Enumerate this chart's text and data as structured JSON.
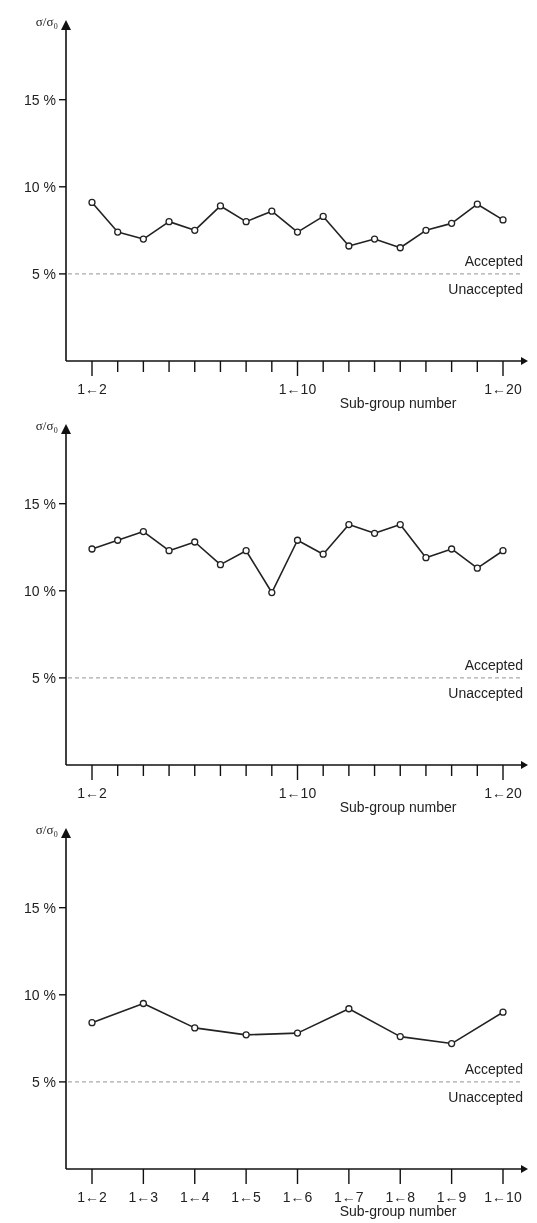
{
  "chart_data": [
    {
      "type": "line",
      "ylabel": "σ/σ₀",
      "xlabel": "Sub-group number",
      "categories": [
        "1←2",
        null,
        null,
        null,
        null,
        null,
        null,
        null,
        "1←10",
        null,
        null,
        null,
        null,
        null,
        null,
        null,
        "1←20"
      ],
      "series": [
        {
          "color": "#222222",
          "values": [
            9.1,
            7.4,
            7.0,
            8.0,
            7.5,
            8.9,
            8.0,
            8.6,
            7.4,
            8.3,
            6.6,
            7.0,
            6.5,
            7.5,
            7.9,
            9.0,
            8.1
          ]
        }
      ],
      "ylim": [
        0,
        19
      ],
      "yticks": [
        {
          "value": 5,
          "label": "5 %"
        },
        {
          "value": 10,
          "label": "10 %"
        },
        {
          "value": 15,
          "label": "15 %"
        }
      ],
      "ref_lines": [
        {
          "axis": "y",
          "value": 5,
          "color": "#aaaaaa",
          "line_style": "dashed"
        }
      ],
      "annotations": [
        "Accepted",
        "Unaccepted"
      ],
      "marker": "circle",
      "grid": false
    },
    {
      "type": "line",
      "ylabel": "σ/σ₀",
      "xlabel": "Sub-group number",
      "categories": [
        "1←2",
        null,
        null,
        null,
        null,
        null,
        null,
        null,
        "1←10",
        null,
        null,
        null,
        null,
        null,
        null,
        null,
        "1←20"
      ],
      "series": [
        {
          "color": "#222222",
          "values": [
            12.4,
            12.9,
            13.4,
            12.3,
            12.8,
            11.5,
            12.3,
            9.9,
            12.9,
            12.1,
            13.8,
            13.3,
            13.8,
            11.9,
            12.4,
            11.3,
            12.3
          ]
        }
      ],
      "ylim": [
        0,
        19
      ],
      "yticks": [
        {
          "value": 5,
          "label": "5 %"
        },
        {
          "value": 10,
          "label": "10 %"
        },
        {
          "value": 15,
          "label": "15 %"
        }
      ],
      "ref_lines": [
        {
          "axis": "y",
          "value": 5,
          "color": "#aaaaaa",
          "line_style": "dashed"
        }
      ],
      "annotations": [
        "Accepted",
        "Unaccepted"
      ],
      "marker": "circle",
      "grid": false
    },
    {
      "type": "line",
      "ylabel": "σ/σ₀",
      "xlabel": "Sub-group number",
      "categories": [
        "1←2",
        "1←3",
        "1←4",
        "1←5",
        "1←6",
        "1←7",
        "1←8",
        "1←9",
        "1←10"
      ],
      "series": [
        {
          "color": "#222222",
          "values": [
            8.4,
            9.5,
            8.1,
            7.7,
            7.8,
            9.2,
            7.6,
            7.2,
            9.0
          ]
        }
      ],
      "ylim": [
        0,
        19
      ],
      "yticks": [
        {
          "value": 5,
          "label": "5 %"
        },
        {
          "value": 10,
          "label": "10 %"
        },
        {
          "value": 15,
          "label": "15 %"
        }
      ],
      "ref_lines": [
        {
          "axis": "y",
          "value": 5,
          "color": "#aaaaaa",
          "line_style": "dashed"
        }
      ],
      "annotations": [
        "Accepted",
        "Unaccepted"
      ],
      "marker": "circle",
      "grid": false
    }
  ]
}
